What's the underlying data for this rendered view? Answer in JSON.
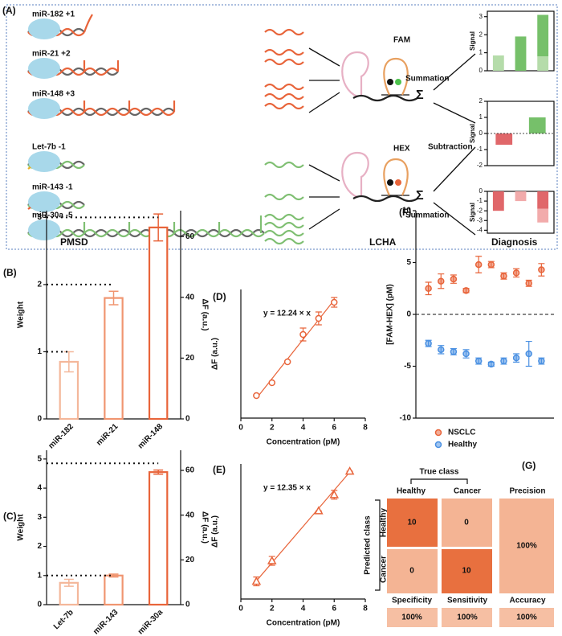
{
  "diagram": {
    "panel": "(A)",
    "rows": [
      "miR-182 +1",
      "miR-21 +2",
      "miR-148 +3",
      "Let-7b -1",
      "miR-143 -1",
      "miR-30a -5"
    ],
    "stages": [
      "PMSD",
      "LCHA",
      "Diagnosis"
    ],
    "probes": [
      "FAM",
      "HEX"
    ],
    "operations": [
      "Summation",
      "Subtraction",
      "Summation"
    ],
    "sigma": "Σ"
  },
  "matrix": {
    "panel": "(G)",
    "true_label": "True class",
    "pred_label": "Predicted class",
    "columns": [
      "Healthy",
      "Cancer"
    ],
    "rows": [
      "Healthy",
      "Cancer"
    ],
    "cells": [
      [
        10,
        0
      ],
      [
        0,
        10
      ]
    ],
    "precision_label": "Precision",
    "precision": "100%",
    "metrics": [
      {
        "name": "Specificity",
        "value": "100%"
      },
      {
        "name": "Sensitivity",
        "value": "100%"
      },
      {
        "name": "Accuracy",
        "value": "100%"
      }
    ]
  },
  "chart_data": [
    {
      "type": "bar",
      "stacked": true,
      "frame": true,
      "ylabel": "Signal",
      "categories": [
        null,
        null,
        null
      ],
      "series": [
        {
          "color": "#b5dcaa",
          "values": [
            0.85,
            0,
            0.8
          ]
        },
        {
          "color": "#76c06a",
          "values": [
            0,
            1.9,
            2.3
          ]
        }
      ],
      "ylim": [
        0,
        3.3
      ],
      "yticks": [
        0,
        1,
        2,
        3
      ]
    },
    {
      "type": "bar",
      "frame": true,
      "ylabel": "Signal",
      "categories": [
        null,
        null
      ],
      "values": [
        -0.7,
        1.0
      ],
      "colors": [
        "#e0676a",
        "#76c06a"
      ],
      "ylim": [
        -2,
        2
      ],
      "yticks": [
        -2,
        -1,
        0,
        1,
        2
      ],
      "reference_lines": [
        0
      ]
    },
    {
      "type": "bar",
      "stacked": true,
      "frame": true,
      "ylabel": "Signal",
      "categories": [
        null,
        null,
        null
      ],
      "series": [
        {
          "color": "#e0676a",
          "values": [
            -2,
            0,
            -1.8
          ]
        },
        {
          "color": "#f2abab",
          "values": [
            0,
            -1,
            -1.4
          ]
        }
      ],
      "ylim": [
        -4.3,
        0
      ],
      "yticks": [
        0,
        -1,
        -2,
        -3,
        -4
      ]
    },
    {
      "type": "bar",
      "panel": "(B)",
      "ylabel": "Weight",
      "y2label": "ΔF (a.u.)",
      "categories": [
        "miR-182",
        "miR-21",
        "miR-148"
      ],
      "values": [
        0.85,
        1.8,
        2.85
      ],
      "errors": [
        0.15,
        0.1,
        0.2
      ],
      "colors": [
        "#f4b79a",
        "#f09570",
        "#e8643a"
      ],
      "ylim": [
        0,
        3.1
      ],
      "yticks": [
        0,
        1,
        2,
        3
      ],
      "y2lim": [
        0,
        68.5
      ],
      "y2ticks": [
        0,
        20,
        40,
        60
      ],
      "reference_lines": [
        1,
        2,
        3
      ]
    },
    {
      "type": "bar",
      "panel": "(C)",
      "ylabel": "Weight",
      "y2label": "ΔF (a.u.)",
      "categories": [
        "Let-7b",
        "miR-143",
        "miR-30a"
      ],
      "values": [
        0.75,
        1.0,
        4.55
      ],
      "errors": [
        0.12,
        0.05,
        0.07
      ],
      "colors": [
        "#f4b79a",
        "#f09570",
        "#e8643a"
      ],
      "ylim": [
        0,
        5.3
      ],
      "yticks": [
        0,
        1,
        2,
        3,
        4,
        5
      ],
      "y2lim": [
        0,
        69
      ],
      "y2ticks": [
        0,
        20,
        40,
        60
      ],
      "reference_lines": [
        1,
        4.85
      ]
    },
    {
      "type": "scatter",
      "panel": "(D)",
      "xlabel": "Concentration (pM)",
      "ylabel": "ΔF (a.u.)",
      "marker": "circle",
      "color": "#e8643a",
      "x": [
        1,
        2,
        3,
        4,
        5,
        6
      ],
      "values": [
        14,
        22,
        35,
        52,
        62,
        72
      ],
      "errors": [
        0,
        0,
        0,
        4,
        4,
        3
      ],
      "xlim": [
        0,
        8
      ],
      "xticks": [
        0,
        2,
        4,
        6,
        8
      ],
      "ylim": [
        0,
        80
      ],
      "fit_slope": 12.24,
      "annotation": "y = 12.24 × x"
    },
    {
      "type": "scatter",
      "panel": "(E)",
      "xlabel": "Concentration (pM)",
      "ylabel": "ΔF (a.u.)",
      "marker": "triangle",
      "color": "#e8643a",
      "x": [
        1,
        2,
        5,
        6,
        7
      ],
      "values": [
        12,
        26,
        60,
        71,
        87
      ],
      "errors": [
        3,
        3,
        0,
        3,
        0
      ],
      "xlim": [
        0,
        8
      ],
      "xticks": [
        0,
        2,
        4,
        6,
        8
      ],
      "ylim": [
        0,
        92
      ],
      "fit_slope": 12.35,
      "annotation": "y = 12.35 × x"
    },
    {
      "type": "scatter",
      "panel": "(F)",
      "ylabel": "[FAM-HEX] (pM)",
      "marker": "circle",
      "x": [
        1,
        2,
        3,
        4,
        5,
        6,
        7,
        8,
        9,
        10
      ],
      "series": [
        {
          "name": "NSCLC",
          "color": "#e8643a",
          "values": [
            2.5,
            3.2,
            3.4,
            2.3,
            4.8,
            4.8,
            3.7,
            4.0,
            3.0,
            4.3
          ],
          "errors": [
            0.6,
            0.7,
            0.4,
            0.2,
            0.8,
            0.3,
            0.3,
            0.4,
            0.3,
            0.6
          ]
        },
        {
          "name": "Healthy",
          "color": "#4a90e2",
          "values": [
            -2.8,
            -3.4,
            -3.6,
            -3.8,
            -4.5,
            -4.8,
            -4.5,
            -4.2,
            -3.8,
            -4.5
          ],
          "errors": [
            0.3,
            0.4,
            0.3,
            0.4,
            0.3,
            0.2,
            0.3,
            0.4,
            1.2,
            0.3
          ]
        }
      ],
      "xlim": [
        0,
        11
      ],
      "ylim": [
        -10,
        10
      ],
      "yticks": [
        -10,
        -5,
        0,
        5,
        10
      ],
      "reference_lines": [
        0
      ],
      "legend": "bottom"
    }
  ]
}
